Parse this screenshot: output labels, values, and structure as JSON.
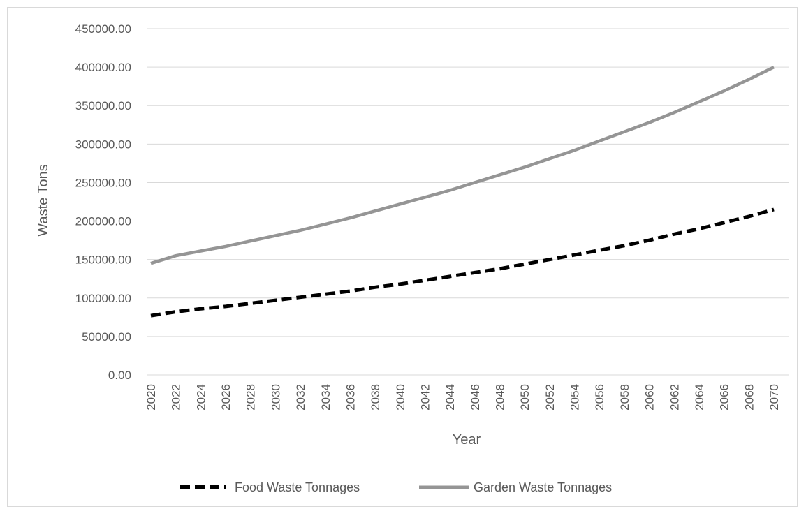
{
  "chart_data": {
    "type": "line",
    "title": "",
    "xlabel": "Year",
    "ylabel": "Waste Tons",
    "x": [
      2020,
      2022,
      2024,
      2026,
      2028,
      2030,
      2032,
      2034,
      2036,
      2038,
      2040,
      2042,
      2044,
      2046,
      2048,
      2050,
      2052,
      2054,
      2056,
      2058,
      2060,
      2062,
      2064,
      2066,
      2068,
      2070
    ],
    "x_tick_labels": [
      "2020",
      "2022",
      "2024",
      "2026",
      "2028",
      "2030",
      "2032",
      "2034",
      "2036",
      "2038",
      "2040",
      "2042",
      "2044",
      "2046",
      "2048",
      "2050",
      "2052",
      "2054",
      "2056",
      "2058",
      "2060",
      "2062",
      "2064",
      "2066",
      "2068",
      "2070"
    ],
    "y_tick_labels": [
      "0.00",
      "50000.00",
      "100000.00",
      "150000.00",
      "200000.00",
      "250000.00",
      "300000.00",
      "350000.00",
      "400000.00",
      "450000.00"
    ],
    "ylim": [
      0,
      450000
    ],
    "grid": true,
    "legend_position": "bottom",
    "series": [
      {
        "name": "Food Waste Tonnages",
        "color": "#000000",
        "dash": true,
        "values": [
          77000,
          82000,
          86000,
          89000,
          93000,
          97000,
          101000,
          105000,
          109000,
          114000,
          118000,
          123000,
          128000,
          133000,
          138000,
          144000,
          150000,
          156000,
          162000,
          168000,
          175000,
          183000,
          190000,
          198000,
          206000,
          215000
        ]
      },
      {
        "name": "Garden Waste Tonnages",
        "color": "#959595",
        "dash": false,
        "values": [
          145000,
          155000,
          161000,
          167000,
          174000,
          181000,
          188000,
          196000,
          204000,
          213000,
          222000,
          231000,
          240000,
          250000,
          260000,
          270000,
          281000,
          292000,
          304000,
          316000,
          328000,
          341000,
          355000,
          369000,
          384000,
          400000
        ]
      }
    ]
  }
}
